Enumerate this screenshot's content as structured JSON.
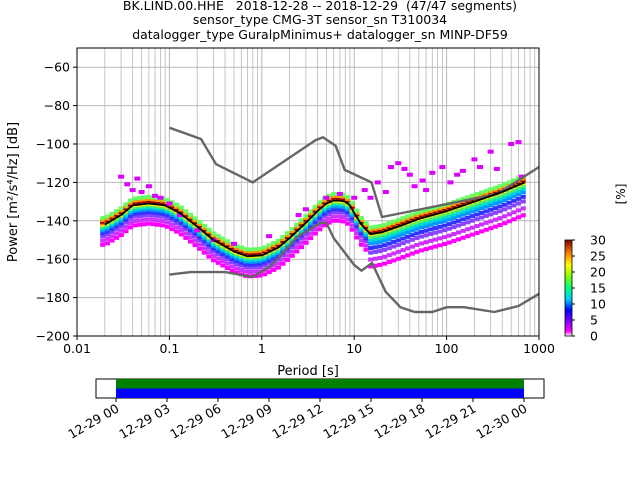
{
  "header": {
    "line1": "BK.LIND.00.HHE   2018-12-28 -- 2018-12-29  (47/47 segments)",
    "line2": "sensor_type CMG-3T sensor_sn T310034",
    "line3": "datalogger_type GuralpMinimus+ datalogger_sn MINP-DF59"
  },
  "chart_data": [
    {
      "type": "heatmap",
      "title": "BK.LIND.00.HHE   2018-12-28 -- 2018-12-29  (47/47 segments)",
      "xlabel": "Period [s]",
      "ylabel": "Power [m²/s⁴/Hz] [dB]",
      "x_scale": "log",
      "xlim": [
        0.01,
        1000
      ],
      "ylim": [
        -200,
        -50
      ],
      "x_ticks": [
        "0.01",
        "0.1",
        "1",
        "10",
        "100",
        "1000"
      ],
      "y_ticks": [
        "−60",
        "−80",
        "−100",
        "−120",
        "−140",
        "−160",
        "−180",
        "−200"
      ],
      "grid": true,
      "colorbar": {
        "label": "[%]",
        "ticks": [
          "0",
          "5",
          "10",
          "15",
          "20",
          "25",
          "30"
        ],
        "range": [
          0,
          30
        ]
      },
      "series": [
        {
          "role": "noise-model-high",
          "color": "#666666",
          "x": [
            0.1,
            0.22,
            0.32,
            0.8,
            3.8,
            4.6,
            6.3,
            7.9,
            15.4,
            20,
            354.8,
            1000
          ],
          "y": [
            -91.5,
            -97.4,
            -110.5,
            -120,
            -98,
            -96.5,
            -101,
            -113.5,
            -120,
            -138,
            -126,
            -112
          ]
        },
        {
          "role": "noise-model-low",
          "color": "#666666",
          "x": [
            0.1,
            0.17,
            0.4,
            0.8,
            1.24,
            2.4,
            4.3,
            5,
            6,
            10,
            12,
            15.6,
            21.9,
            31.6,
            45,
            70,
            101,
            154,
            328,
            600,
            1000
          ],
          "y": [
            -168,
            -166.7,
            -166.7,
            -169.2,
            -163.7,
            -148.6,
            -141.1,
            -141.1,
            -149,
            -163,
            -166,
            -162,
            -177,
            -185,
            -187.5,
            -187.5,
            -185,
            -185,
            -187.5,
            -184.4,
            -178
          ]
        },
        {
          "role": "mode",
          "color": "#000000",
          "x": [
            0.02,
            0.03,
            0.04,
            0.06,
            0.09,
            0.13,
            0.2,
            0.3,
            0.5,
            0.7,
            1.0,
            1.5,
            2,
            3,
            4,
            5,
            6,
            7,
            8,
            9,
            10,
            12,
            15,
            20,
            30,
            50,
            100,
            200,
            400,
            700
          ],
          "y": [
            -142,
            -137,
            -132,
            -131,
            -132,
            -136,
            -143,
            -150,
            -156,
            -158.5,
            -158,
            -154,
            -149,
            -141,
            -135,
            -131,
            -129.5,
            -129.5,
            -130,
            -132,
            -136,
            -142,
            -147,
            -146,
            -143,
            -139,
            -135,
            -130,
            -125,
            -120
          ]
        }
      ]
    },
    {
      "type": "heatmap",
      "role": "data-availability",
      "x_ticks": [
        "12-29 00",
        "12-29 03",
        "12-29 06",
        "12-29 09",
        "12-29 12",
        "12-29 15",
        "12-29 18",
        "12-29 21",
        "12-30 00"
      ],
      "bands": [
        {
          "name": "available",
          "color": "#008000"
        },
        {
          "name": "used",
          "color": "#0000ff"
        }
      ]
    }
  ]
}
